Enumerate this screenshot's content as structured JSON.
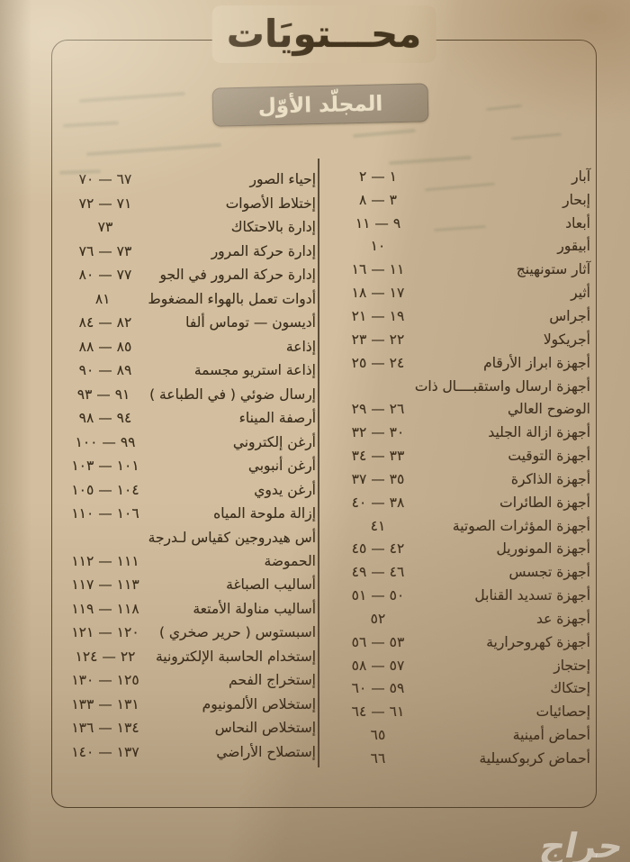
{
  "page": {
    "title": "محـــتويَات",
    "volume_badge": "المجلّد الأوّل",
    "watermark": "حراج"
  },
  "toc": {
    "column_right": [
      {
        "title": "آبار",
        "pages": "١ — ٢"
      },
      {
        "title": "إبحار",
        "pages": "٣ — ٨"
      },
      {
        "title": "أبعاد",
        "pages": "٩ — ١١"
      },
      {
        "title": "أبيقور",
        "pages": "١٠"
      },
      {
        "title": "آثار ستونهينج",
        "pages": "١١ — ١٦"
      },
      {
        "title": "أثير",
        "pages": "١٧ — ١٨"
      },
      {
        "title": "أجراس",
        "pages": "١٩ — ٢١"
      },
      {
        "title": "أجريكولا",
        "pages": "٢٢ — ٢٣"
      },
      {
        "title": "أجهزة ابراز الأرقام",
        "pages": "٢٤ — ٢٥"
      },
      {
        "title": "أجهزة ارسال واستقبــــال ذات",
        "pages": ""
      },
      {
        "title": "الوضوح العالي",
        "pages": "٢٦ — ٢٩"
      },
      {
        "title": "أجهزة ازالة الجليد",
        "pages": "٣٠ — ٣٢"
      },
      {
        "title": "أجهزة التوقيت",
        "pages": "٣٣ — ٣٤"
      },
      {
        "title": "أجهزة الذاكرة",
        "pages": "٣٥ — ٣٧"
      },
      {
        "title": "أجهزة الطائرات",
        "pages": "٣٨ — ٤٠"
      },
      {
        "title": "أجهزة المؤثرات الصوتية",
        "pages": "٤١"
      },
      {
        "title": "أجهزة المونوريل",
        "pages": "٤٢ — ٤٥"
      },
      {
        "title": "أجهزة تجسس",
        "pages": "٤٦ — ٤٩"
      },
      {
        "title": "أجهزة تسديد القنابل",
        "pages": "٥٠ — ٥١"
      },
      {
        "title": "أجهزة عد",
        "pages": "٥٢"
      },
      {
        "title": "أجهزة كهروحرارية",
        "pages": "٥٣ — ٥٦"
      },
      {
        "title": "إحتجاز",
        "pages": "٥٧ — ٥٨"
      },
      {
        "title": "إحتكاك",
        "pages": "٥٩ — ٦٠"
      },
      {
        "title": "إحصائيات",
        "pages": "٦١ — ٦٤"
      },
      {
        "title": "أحماض أمينية",
        "pages": "٦٥"
      },
      {
        "title": "أحماض كربوكسيلية",
        "pages": "٦٦"
      }
    ],
    "column_left": [
      {
        "title": "إحياء الصور",
        "pages": "٦٧ — ٧٠"
      },
      {
        "title": "إختلاط الأصوات",
        "pages": "٧١ — ٧٢"
      },
      {
        "title": "إدارة بالاحتكاك",
        "pages": "٧٣"
      },
      {
        "title": "إدارة حركة المرور",
        "pages": "٧٣ — ٧٦"
      },
      {
        "title": "إدارة حركة المرور في الجو",
        "pages": "٧٧ — ٨٠"
      },
      {
        "title": "أدوات تعمل بالهواء المضغوط",
        "pages": "٨١"
      },
      {
        "title": "أديسون — توماس ألفا",
        "pages": "٨٢ — ٨٤"
      },
      {
        "title": "إذاعة",
        "pages": "٨٥ — ٨٨"
      },
      {
        "title": "إذاعة استريو مجسمة",
        "pages": "٨٩ — ٩٠"
      },
      {
        "title": "إرسال ضوئي ( في الطباعة )",
        "pages": "٩١ — ٩٣"
      },
      {
        "title": "أرصفة الميناء",
        "pages": "٩٤ — ٩٨"
      },
      {
        "title": "أرغن إلكتروني",
        "pages": "٩٩ — ١٠٠"
      },
      {
        "title": "أرغن أنبوبي",
        "pages": "١٠١ — ١٠٣"
      },
      {
        "title": "أرغن يدوي",
        "pages": "١٠٤ — ١٠٥"
      },
      {
        "title": "إزالة ملوحة المياه",
        "pages": "١٠٦ — ١١٠"
      },
      {
        "title": "أس هيدروجين كقياس لـدرجة",
        "pages": ""
      },
      {
        "title": "الحموضة",
        "pages": "١١١ — ١١٢"
      },
      {
        "title": "أساليب الصباغة",
        "pages": "١١٣ — ١١٧"
      },
      {
        "title": "أساليب مناولة الأمتعة",
        "pages": "١١٨ — ١١٩"
      },
      {
        "title": "اسبستوس ( حرير صخري )",
        "pages": "١٢٠ — ١٢١"
      },
      {
        "title": "إستخدام الحاسبة الإلكترونية",
        "pages": "٢٢ — ١٢٤"
      },
      {
        "title": "إستخراج الفحم",
        "pages": "١٢٥ — ١٣٠"
      },
      {
        "title": "إستخلاص الألمونيوم",
        "pages": "١٣١ — ١٣٣"
      },
      {
        "title": "إستخلاص النحاس",
        "pages": "١٣٤ — ١٣٦"
      },
      {
        "title": "إستصلاح الأراضي",
        "pages": "١٣٧ — ١٤٠"
      }
    ]
  },
  "colors": {
    "page_background": "#d3bf9f",
    "ink": "#3a2d1c",
    "frame_border": "#57482f",
    "badge_background": "#a39480",
    "badge_text": "#ece0c6",
    "watermark": "#f8f3e8"
  }
}
